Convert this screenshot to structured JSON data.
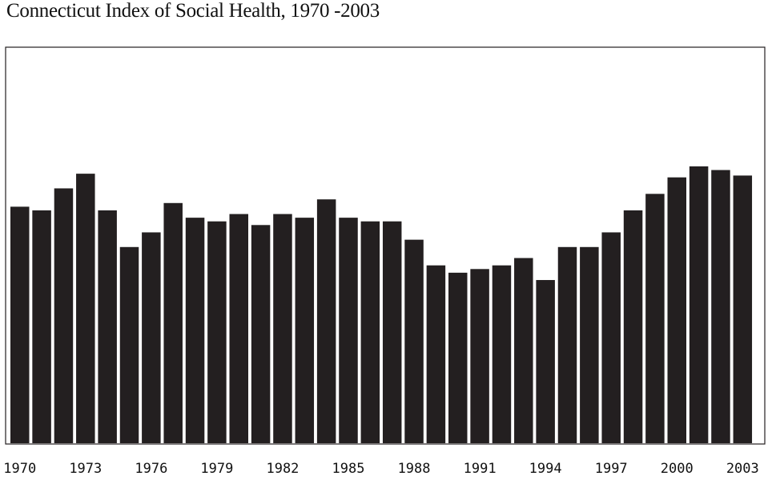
{
  "chart_data": {
    "type": "bar",
    "title": "Connecticut Index of Social Health, 1970 -2003",
    "xlabel": "",
    "ylabel": "",
    "grid": false,
    "legend": "none",
    "bar_color": "#231f20",
    "frame_color": "#231f20",
    "categories": [
      "1970",
      "1971",
      "1972",
      "1973",
      "1974",
      "1975",
      "1976",
      "1977",
      "1978",
      "1979",
      "1980",
      "1981",
      "1982",
      "1983",
      "1984",
      "1985",
      "1986",
      "1987",
      "1988",
      "1989",
      "1990",
      "1991",
      "1992",
      "1993",
      "1994",
      "1995",
      "1996",
      "1997",
      "1998",
      "1999",
      "2000",
      "2001",
      "2002",
      "2003"
    ],
    "values": [
      64.5,
      63.5,
      69.5,
      73.5,
      63.5,
      53.5,
      57.5,
      65.5,
      61.5,
      60.5,
      62.5,
      59.5,
      62.5,
      61.5,
      66.5,
      61.5,
      60.5,
      60.5,
      55.5,
      48.5,
      46.5,
      47.5,
      48.5,
      50.5,
      44.5,
      53.5,
      53.5,
      57.5,
      63.5,
      68.0,
      72.5,
      75.5,
      74.5,
      73.0
    ],
    "ylim": [
      0,
      108
    ],
    "tick_labels": [
      "1970",
      "1973",
      "1976",
      "1979",
      "1982",
      "1985",
      "1988",
      "1991",
      "1994",
      "1997",
      "2000",
      "2003"
    ]
  }
}
